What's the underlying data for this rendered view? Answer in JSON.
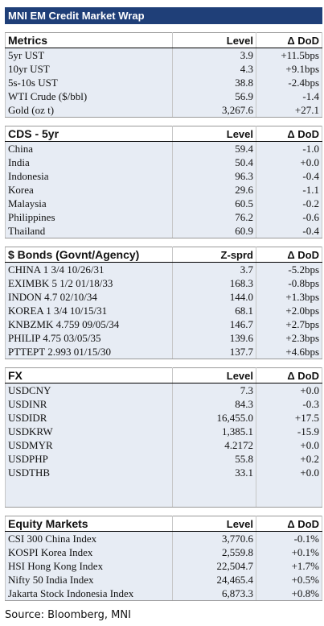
{
  "title": "MNI EM Credit Market Wrap",
  "sections": [
    {
      "id": "metrics",
      "header": [
        "Metrics",
        "Level",
        "Δ DoD"
      ],
      "rows": [
        [
          "5yr UST",
          "3.9",
          "+11.5bps"
        ],
        [
          "10yr UST",
          "4.3",
          "+9.1bps"
        ],
        [
          "5s-10s UST",
          "38.8",
          "-2.4bps"
        ],
        [
          "WTI Crude ($/bbl)",
          "56.9",
          "-1.4"
        ],
        [
          "Gold (oz t)",
          "3,267.6",
          "+27.1"
        ]
      ]
    },
    {
      "id": "cds",
      "header": [
        "CDS - 5yr",
        "Level",
        "Δ DoD"
      ],
      "rows": [
        [
          "China",
          "59.4",
          "-1.0"
        ],
        [
          "India",
          "50.4",
          "+0.0"
        ],
        [
          "Indonesia",
          "96.3",
          "-0.4"
        ],
        [
          "Korea",
          "29.6",
          "-1.1"
        ],
        [
          "Malaysia",
          "60.5",
          "-0.2"
        ],
        [
          "Philippines",
          "76.2",
          "-0.6"
        ],
        [
          "Thailand",
          "60.9",
          "-0.4"
        ]
      ]
    },
    {
      "id": "bonds",
      "header": [
        "$ Bonds (Govnt/Agency)",
        "Z-sprd",
        "Δ DoD"
      ],
      "rows": [
        [
          "CHINA 1 3/4 10/26/31",
          "3.7",
          "-5.2bps"
        ],
        [
          "EXIMBK 5 1/2 01/18/33",
          "168.3",
          "-0.8bps"
        ],
        [
          "INDON 4.7 02/10/34",
          "144.0",
          "+1.3bps"
        ],
        [
          "KOREA 1 3/4 10/15/31",
          "68.1",
          "+2.0bps"
        ],
        [
          "KNBZMK 4.759 09/05/34",
          "146.7",
          "+2.7bps"
        ],
        [
          "PHILIP 4.75 03/05/35",
          "139.6",
          "+2.3bps"
        ],
        [
          "PTTEPT 2.993 01/15/30",
          "137.7",
          "+4.6bps"
        ]
      ]
    },
    {
      "id": "fx",
      "header": [
        "FX",
        "Level",
        "Δ DoD"
      ],
      "rows": [
        [
          "USDCNY",
          "7.3",
          "+0.0"
        ],
        [
          "USDINR",
          "84.3",
          "-0.3"
        ],
        [
          "USDIDR",
          "16,455.0",
          "+17.5"
        ],
        [
          "USDKRW",
          "1,385.1",
          "-15.9"
        ],
        [
          "USDMYR",
          "4.2172",
          "+0.0"
        ],
        [
          "USDPHP",
          "55.8",
          "+0.2"
        ],
        [
          "USDTHB",
          "33.1",
          "+0.0"
        ]
      ],
      "trailing_blank_rows": 2
    },
    {
      "id": "equity",
      "header": [
        "Equity Markets",
        "Level",
        "Δ DoD"
      ],
      "rows": [
        [
          "CSI 300 China Index",
          "3,770.6",
          "-0.1%"
        ],
        [
          "KOSPI Korea Index",
          "2,559.8",
          "+0.1%"
        ],
        [
          "HSI Hong Kong Index",
          "22,504.7",
          "+1.7%"
        ],
        [
          "Nifty 50 India Index",
          "24,465.4",
          "+0.5%"
        ],
        [
          "Jakarta Stock Indonesia Index",
          "6,873.3",
          "+0.8%"
        ]
      ]
    }
  ],
  "source": "Source: Bloomberg, MNI"
}
